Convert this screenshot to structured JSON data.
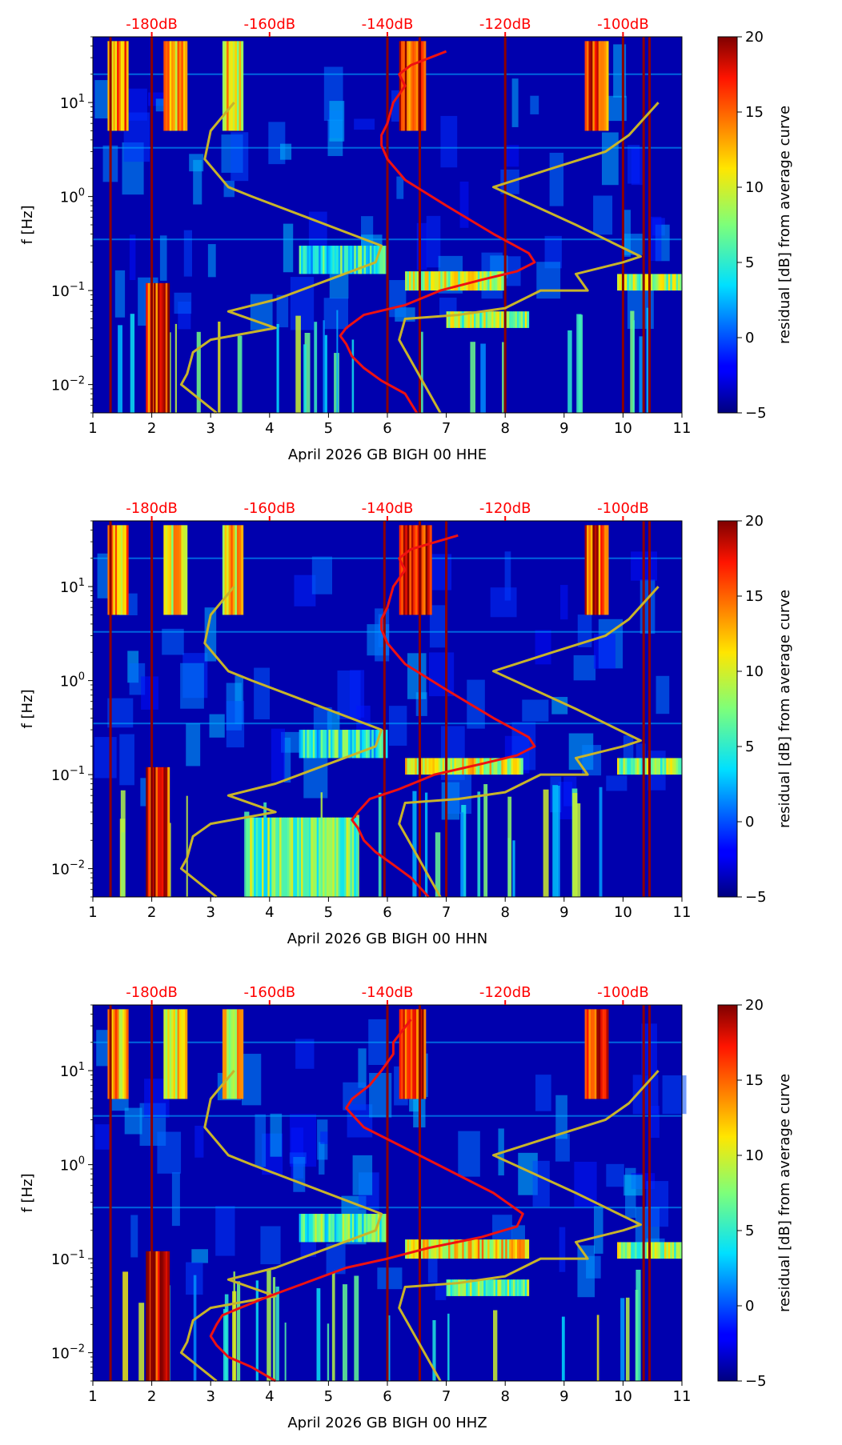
{
  "figure": {
    "background": "#ffffff"
  },
  "colors": {
    "noise_model": "#c8b42a",
    "median_curve": "#ee1111",
    "db_axis": "#ff0000",
    "gap_line": "#8b0000"
  },
  "shared": {
    "xticks": [
      1,
      2,
      3,
      4,
      5,
      6,
      7,
      8,
      9,
      10,
      11
    ],
    "xlim": [
      1,
      11
    ],
    "ylim": [
      0.005,
      50
    ],
    "yticks": [
      {
        "value": 0.01,
        "mant": "10",
        "exp": "−2"
      },
      {
        "value": 0.1,
        "mant": "10",
        "exp": "−1"
      },
      {
        "value": 1,
        "mant": "10",
        "exp": "0"
      },
      {
        "value": 10,
        "mant": "10",
        "exp": "1"
      }
    ],
    "ylabel": "f [Hz]",
    "db_ticks": [
      {
        "x": 2.0,
        "label": "-180dB"
      },
      {
        "x": 4.0,
        "label": "-160dB"
      },
      {
        "x": 6.0,
        "label": "-140dB"
      },
      {
        "x": 8.0,
        "label": "-120dB"
      },
      {
        "x": 10.0,
        "label": "-100dB"
      }
    ],
    "colorbar": {
      "label": "residual [dB] from average curve",
      "range": [
        -5,
        20
      ],
      "ticks": [
        {
          "value": 20,
          "label": "20"
        },
        {
          "value": 15,
          "label": "15"
        },
        {
          "value": 10,
          "label": "10"
        },
        {
          "value": 5,
          "label": "5"
        },
        {
          "value": 0,
          "label": "0"
        },
        {
          "value": -5,
          "label": "−5"
        }
      ]
    }
  },
  "chart_data": [
    {
      "type": "heatmap",
      "title": "",
      "xlabel": "April 2026 GB BIGH 00 HHE",
      "ylabel": "f [Hz]",
      "xlim": [
        1,
        11
      ],
      "ylim": [
        0.005,
        50
      ],
      "gap_days": [
        1.3,
        2.0,
        6.0,
        6.55,
        8.0,
        10.0,
        10.35,
        10.45
      ],
      "bright_bands": [
        {
          "x0": 1.25,
          "x1": 1.6,
          "f0": 5,
          "f1": 45,
          "level": 14
        },
        {
          "x0": 2.2,
          "x1": 2.6,
          "f0": 5,
          "f1": 45,
          "level": 12
        },
        {
          "x0": 3.2,
          "x1": 3.55,
          "f0": 5,
          "f1": 45,
          "level": 11
        },
        {
          "x0": 6.2,
          "x1": 6.65,
          "f0": 5,
          "f1": 45,
          "level": 16
        },
        {
          "x0": 9.35,
          "x1": 9.75,
          "f0": 5,
          "f1": 45,
          "level": 16
        },
        {
          "x0": 9.9,
          "x1": 11,
          "f0": 0.1,
          "f1": 0.15,
          "level": 8
        },
        {
          "x0": 6.3,
          "x1": 8.0,
          "f0": 0.1,
          "f1": 0.16,
          "level": 9
        },
        {
          "x0": 7.0,
          "x1": 8.4,
          "f0": 0.04,
          "f1": 0.06,
          "level": 8
        },
        {
          "x0": 4.5,
          "x1": 6.0,
          "f0": 0.15,
          "f1": 0.3,
          "level": 5
        },
        {
          "x0": 1.9,
          "x1": 2.3,
          "f0": 0.005,
          "f1": 0.12,
          "level": 17
        }
      ],
      "noise_model_low": {
        "db": [
          -169,
          -175,
          -174,
          -173,
          -170,
          -159,
          -167,
          -159,
          -142,
          -141,
          -163,
          -167,
          -171,
          -170,
          -166
        ],
        "f": [
          0.005,
          0.01,
          0.013,
          0.022,
          0.03,
          0.04,
          0.06,
          0.08,
          0.2,
          0.3,
          1.0,
          1.26,
          2.5,
          5,
          10
        ]
      },
      "noise_model_high": {
        "db": [
          -131,
          -138,
          -137,
          -128,
          -120,
          -114,
          -106,
          -108,
          -100,
          -97,
          -108,
          -122,
          -112,
          -103,
          -99,
          -94
        ],
        "f": [
          0.005,
          0.03,
          0.05,
          0.055,
          0.065,
          0.1,
          0.1,
          0.15,
          0.2,
          0.23,
          0.5,
          1.26,
          2.0,
          3.0,
          4.5,
          10
        ]
      },
      "median_curve": {
        "db": [
          -135,
          -137,
          -141,
          -144,
          -146,
          -147,
          -148,
          -147,
          -144,
          -137,
          -131,
          -124,
          -118,
          -115,
          -116,
          -122,
          -130,
          -137,
          -140,
          -141,
          -141,
          -140,
          -139,
          -137,
          -138,
          -136,
          -130
        ],
        "f": [
          0.005,
          0.008,
          0.011,
          0.015,
          0.02,
          0.027,
          0.033,
          0.04,
          0.055,
          0.07,
          0.1,
          0.13,
          0.16,
          0.2,
          0.25,
          0.4,
          0.8,
          1.5,
          2.5,
          3.5,
          4.5,
          6,
          10,
          15,
          20,
          25,
          35
        ]
      }
    },
    {
      "type": "heatmap",
      "title": "",
      "xlabel": "April 2026 GB BIGH 00 HHN",
      "ylabel": "f [Hz]",
      "xlim": [
        1,
        11
      ],
      "ylim": [
        0.005,
        50
      ],
      "gap_days": [
        1.3,
        2.0,
        5.95,
        6.55,
        7.0,
        10.35,
        10.45
      ],
      "bright_bands": [
        {
          "x0": 1.25,
          "x1": 1.6,
          "f0": 5,
          "f1": 45,
          "level": 13
        },
        {
          "x0": 2.2,
          "x1": 2.6,
          "f0": 5,
          "f1": 45,
          "level": 11
        },
        {
          "x0": 3.2,
          "x1": 3.55,
          "f0": 5,
          "f1": 45,
          "level": 12
        },
        {
          "x0": 6.2,
          "x1": 6.75,
          "f0": 5,
          "f1": 45,
          "level": 17
        },
        {
          "x0": 9.35,
          "x1": 9.75,
          "f0": 5,
          "f1": 45,
          "level": 16
        },
        {
          "x0": 9.9,
          "x1": 11,
          "f0": 0.1,
          "f1": 0.15,
          "level": 8
        },
        {
          "x0": 6.3,
          "x1": 8.3,
          "f0": 0.1,
          "f1": 0.15,
          "level": 10
        },
        {
          "x0": 3.6,
          "x1": 5.5,
          "f0": 0.005,
          "f1": 0.035,
          "level": 7
        },
        {
          "x0": 4.5,
          "x1": 6.0,
          "f0": 0.15,
          "f1": 0.3,
          "level": 5
        },
        {
          "x0": 1.9,
          "x1": 2.3,
          "f0": 0.005,
          "f1": 0.12,
          "level": 17
        }
      ],
      "noise_model_low": {
        "db": [
          -169,
          -175,
          -174,
          -173,
          -170,
          -159,
          -167,
          -159,
          -142,
          -141,
          -163,
          -167,
          -171,
          -170,
          -166
        ],
        "f": [
          0.005,
          0.01,
          0.013,
          0.022,
          0.03,
          0.04,
          0.06,
          0.08,
          0.2,
          0.3,
          1.0,
          1.26,
          2.5,
          5,
          10
        ]
      },
      "noise_model_high": {
        "db": [
          -131,
          -138,
          -137,
          -128,
          -120,
          -114,
          -106,
          -108,
          -100,
          -97,
          -108,
          -122,
          -112,
          -103,
          -99,
          -94
        ],
        "f": [
          0.005,
          0.03,
          0.05,
          0.055,
          0.065,
          0.1,
          0.1,
          0.15,
          0.2,
          0.23,
          0.5,
          1.26,
          2.0,
          3.0,
          4.5,
          10
        ]
      },
      "median_curve": {
        "db": [
          -133,
          -136,
          -139,
          -142,
          -144,
          -145,
          -146,
          -145,
          -143,
          -138,
          -132,
          -124,
          -118,
          -115,
          -116,
          -122,
          -130,
          -137,
          -140,
          -141,
          -141,
          -140,
          -139,
          -137,
          -138,
          -136,
          -128
        ],
        "f": [
          0.005,
          0.008,
          0.011,
          0.015,
          0.02,
          0.027,
          0.033,
          0.04,
          0.055,
          0.07,
          0.1,
          0.13,
          0.16,
          0.2,
          0.25,
          0.4,
          0.8,
          1.5,
          2.5,
          3.5,
          4.5,
          6,
          10,
          15,
          20,
          25,
          35
        ]
      }
    },
    {
      "type": "heatmap",
      "title": "",
      "xlabel": "April 2026 GB BIGH 00 HHZ",
      "ylabel": "f [Hz]",
      "xlim": [
        1,
        11
      ],
      "ylim": [
        0.005,
        50
      ],
      "gap_days": [
        1.3,
        2.0,
        6.0,
        6.55,
        10.35,
        10.45
      ],
      "bright_bands": [
        {
          "x0": 1.25,
          "x1": 1.6,
          "f0": 5,
          "f1": 45,
          "level": 13
        },
        {
          "x0": 2.2,
          "x1": 2.6,
          "f0": 5,
          "f1": 45,
          "level": 11
        },
        {
          "x0": 3.2,
          "x1": 3.55,
          "f0": 5,
          "f1": 45,
          "level": 11
        },
        {
          "x0": 6.2,
          "x1": 6.65,
          "f0": 5,
          "f1": 45,
          "level": 16
        },
        {
          "x0": 9.35,
          "x1": 9.75,
          "f0": 5,
          "f1": 45,
          "level": 17
        },
        {
          "x0": 9.9,
          "x1": 11,
          "f0": 0.1,
          "f1": 0.15,
          "level": 8
        },
        {
          "x0": 6.3,
          "x1": 8.4,
          "f0": 0.1,
          "f1": 0.16,
          "level": 11
        },
        {
          "x0": 7.0,
          "x1": 8.4,
          "f0": 0.04,
          "f1": 0.06,
          "level": 7
        },
        {
          "x0": 4.5,
          "x1": 6.0,
          "f0": 0.15,
          "f1": 0.3,
          "level": 6
        },
        {
          "x0": 1.9,
          "x1": 2.3,
          "f0": 0.005,
          "f1": 0.12,
          "level": 18
        }
      ],
      "noise_model_low": {
        "db": [
          -169,
          -175,
          -174,
          -173,
          -170,
          -159,
          -167,
          -159,
          -142,
          -141,
          -163,
          -167,
          -171,
          -170,
          -166
        ],
        "f": [
          0.005,
          0.01,
          0.013,
          0.022,
          0.03,
          0.04,
          0.06,
          0.08,
          0.2,
          0.3,
          1.0,
          1.26,
          2.5,
          5,
          10
        ]
      },
      "noise_model_high": {
        "db": [
          -131,
          -138,
          -137,
          -128,
          -120,
          -114,
          -106,
          -108,
          -100,
          -97,
          -108,
          -122,
          -112,
          -103,
          -99,
          -94
        ],
        "f": [
          0.005,
          0.03,
          0.05,
          0.055,
          0.065,
          0.1,
          0.1,
          0.15,
          0.2,
          0.23,
          0.5,
          1.26,
          2.0,
          3.0,
          4.5,
          10
        ]
      },
      "median_curve": {
        "db": [
          -159,
          -163,
          -167,
          -169,
          -170,
          -169,
          -168,
          -165,
          -160,
          -154,
          -147,
          -140,
          -133,
          -124,
          -118,
          -117,
          -122,
          -130,
          -137,
          -144,
          -147,
          -146,
          -143,
          -141,
          -139,
          -139,
          -136
        ],
        "f": [
          0.005,
          0.007,
          0.009,
          0.012,
          0.015,
          0.02,
          0.025,
          0.03,
          0.04,
          0.055,
          0.08,
          0.1,
          0.13,
          0.17,
          0.22,
          0.3,
          0.5,
          0.9,
          1.5,
          2.5,
          4,
          5,
          7,
          10,
          15,
          20,
          35
        ]
      }
    }
  ]
}
